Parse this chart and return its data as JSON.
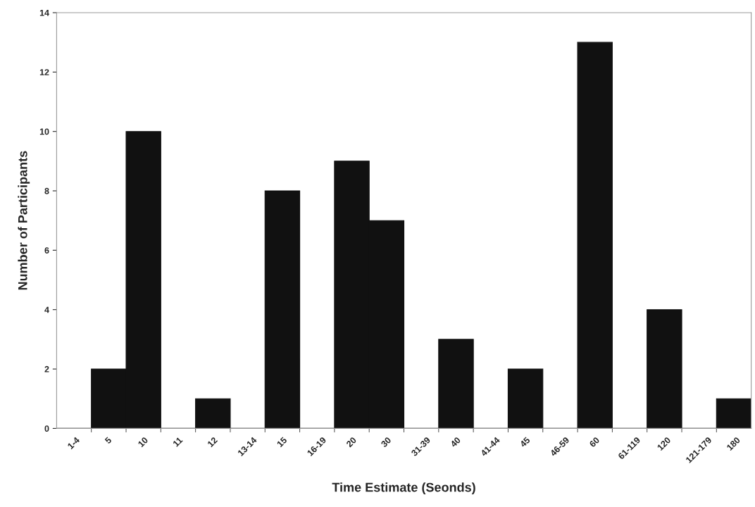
{
  "chart_data": {
    "type": "bar",
    "xlabel": "Time Estimate (Seonds)",
    "ylabel": "Number of Participants",
    "categories": [
      "1-4",
      "5",
      "10",
      "11",
      "12",
      "13-14",
      "15",
      "16-19",
      "20",
      "30",
      "31-39",
      "40",
      "41-44",
      "45",
      "46-59",
      "60",
      "61-119",
      "120",
      "121-179",
      "180"
    ],
    "values": [
      0,
      2,
      10,
      0,
      1,
      0,
      8,
      0,
      9,
      7,
      0,
      3,
      0,
      2,
      0,
      13,
      0,
      4,
      0,
      1
    ],
    "color": "#111111",
    "ylim": [
      0,
      14
    ],
    "yticks": [
      0,
      2,
      4,
      6,
      8,
      10,
      12,
      14
    ],
    "grid": false,
    "legend": false
  }
}
